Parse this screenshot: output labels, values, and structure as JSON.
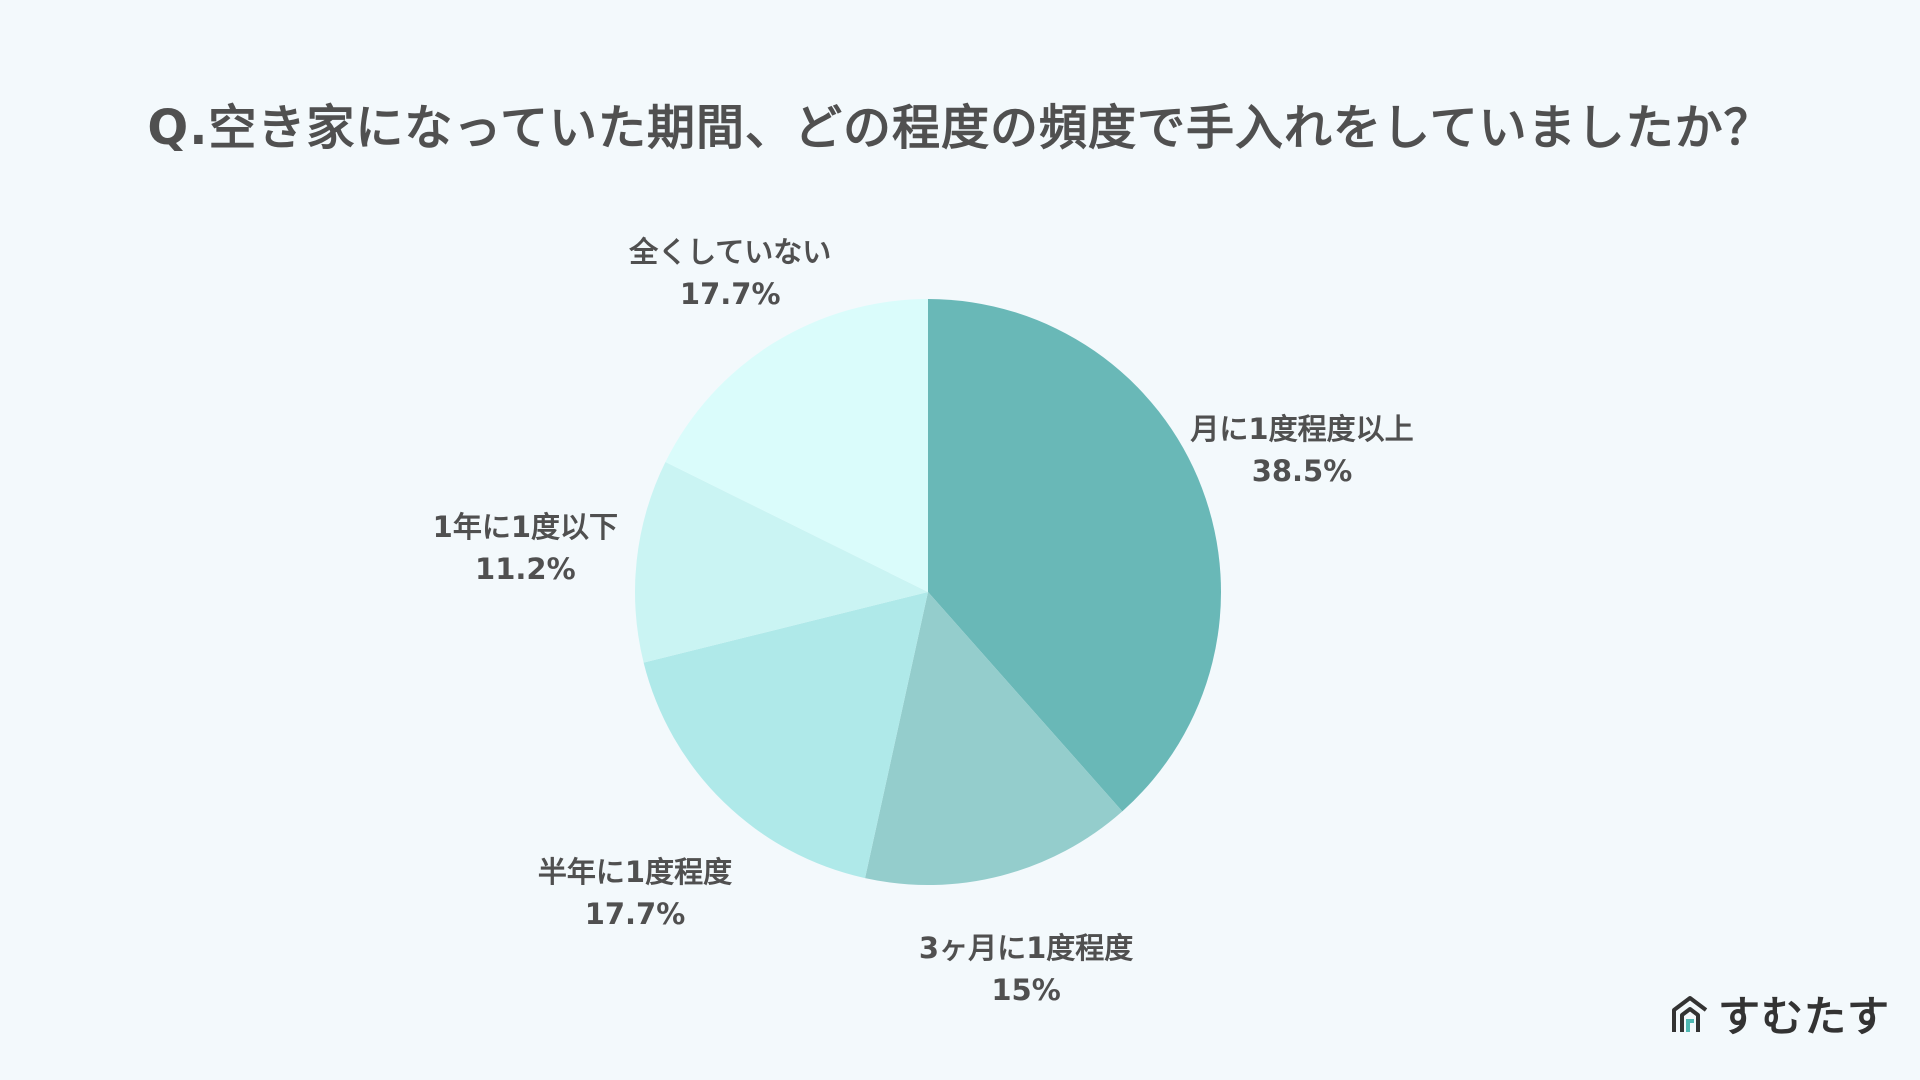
{
  "title": "Q.空き家になっていた期間、どの程度の頻度で手入れをしていましたか？",
  "chart_data": {
    "type": "pie",
    "categories": [
      "月に1度程度以上",
      "3ヶ月に1度程度",
      "半年に1度程度",
      "1年に1度以下",
      "全くしていない"
    ],
    "values": [
      38.5,
      15,
      17.7,
      11.2,
      17.7
    ],
    "value_labels": [
      "38.5%",
      "15%",
      "17.7%",
      "11.2%",
      "17.7%"
    ],
    "colors": [
      "#69b8b7",
      "#94cdcc",
      "#afe9e9",
      "#caf4f3",
      "#dafcfb"
    ],
    "start": "12 o'clock",
    "direction": "clockwise",
    "legend": "none"
  },
  "brand": {
    "name": "すむたす",
    "icon": "house-logo-icon"
  }
}
